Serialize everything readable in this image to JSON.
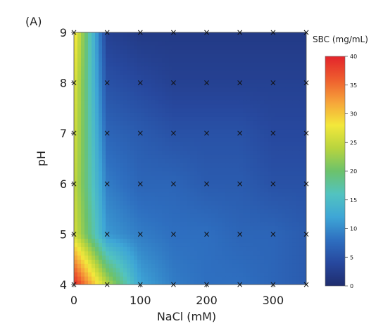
{
  "panel_label": "(A)",
  "chart_data": {
    "type": "heatmap",
    "xlabel": "NaCl (mM)",
    "ylabel": "pH",
    "xlim": [
      0,
      350
    ],
    "ylim": [
      4,
      9
    ],
    "x_ticks": [
      0,
      100,
      200,
      300
    ],
    "x_tick_labels": [
      "0",
      "100",
      "200",
      "300"
    ],
    "y_ticks": [
      4,
      5,
      6,
      7,
      8,
      9
    ],
    "y_tick_labels": [
      "4",
      "5",
      "6",
      "7",
      "8",
      "9"
    ],
    "grid": false,
    "colorbar": {
      "title": "SBC (mg/mL)",
      "min": 0,
      "max": 40,
      "ticks": [
        0,
        5,
        10,
        15,
        20,
        25,
        30,
        35,
        40
      ],
      "tick_labels": [
        "0",
        "5",
        "10",
        "15",
        "20",
        "25",
        "30",
        "35",
        "40"
      ],
      "colormap": [
        "#1f2d6e",
        "#27489e",
        "#2e6fc0",
        "#3ea6d6",
        "#52c3c0",
        "#6cc26b",
        "#b8d43e",
        "#f3e83b",
        "#f6a43a",
        "#ee5d2e",
        "#e3242b"
      ]
    },
    "x": [
      0,
      50,
      100,
      150,
      200,
      250,
      300,
      350
    ],
    "y": [
      4,
      5,
      6,
      7,
      8,
      9
    ],
    "z": [
      [
        40,
        24,
        12,
        9,
        8,
        8,
        7,
        6
      ],
      [
        26,
        11,
        9,
        8,
        8,
        7,
        7,
        6
      ],
      [
        25,
        9,
        7,
        7,
        6,
        6,
        5,
        5
      ],
      [
        26,
        7,
        6,
        5,
        5,
        5,
        4,
        4
      ],
      [
        27,
        5,
        4,
        3,
        3,
        3,
        3,
        3
      ],
      [
        29,
        3,
        2,
        2,
        2,
        2,
        2,
        2
      ]
    ],
    "sample_marker": "×"
  }
}
